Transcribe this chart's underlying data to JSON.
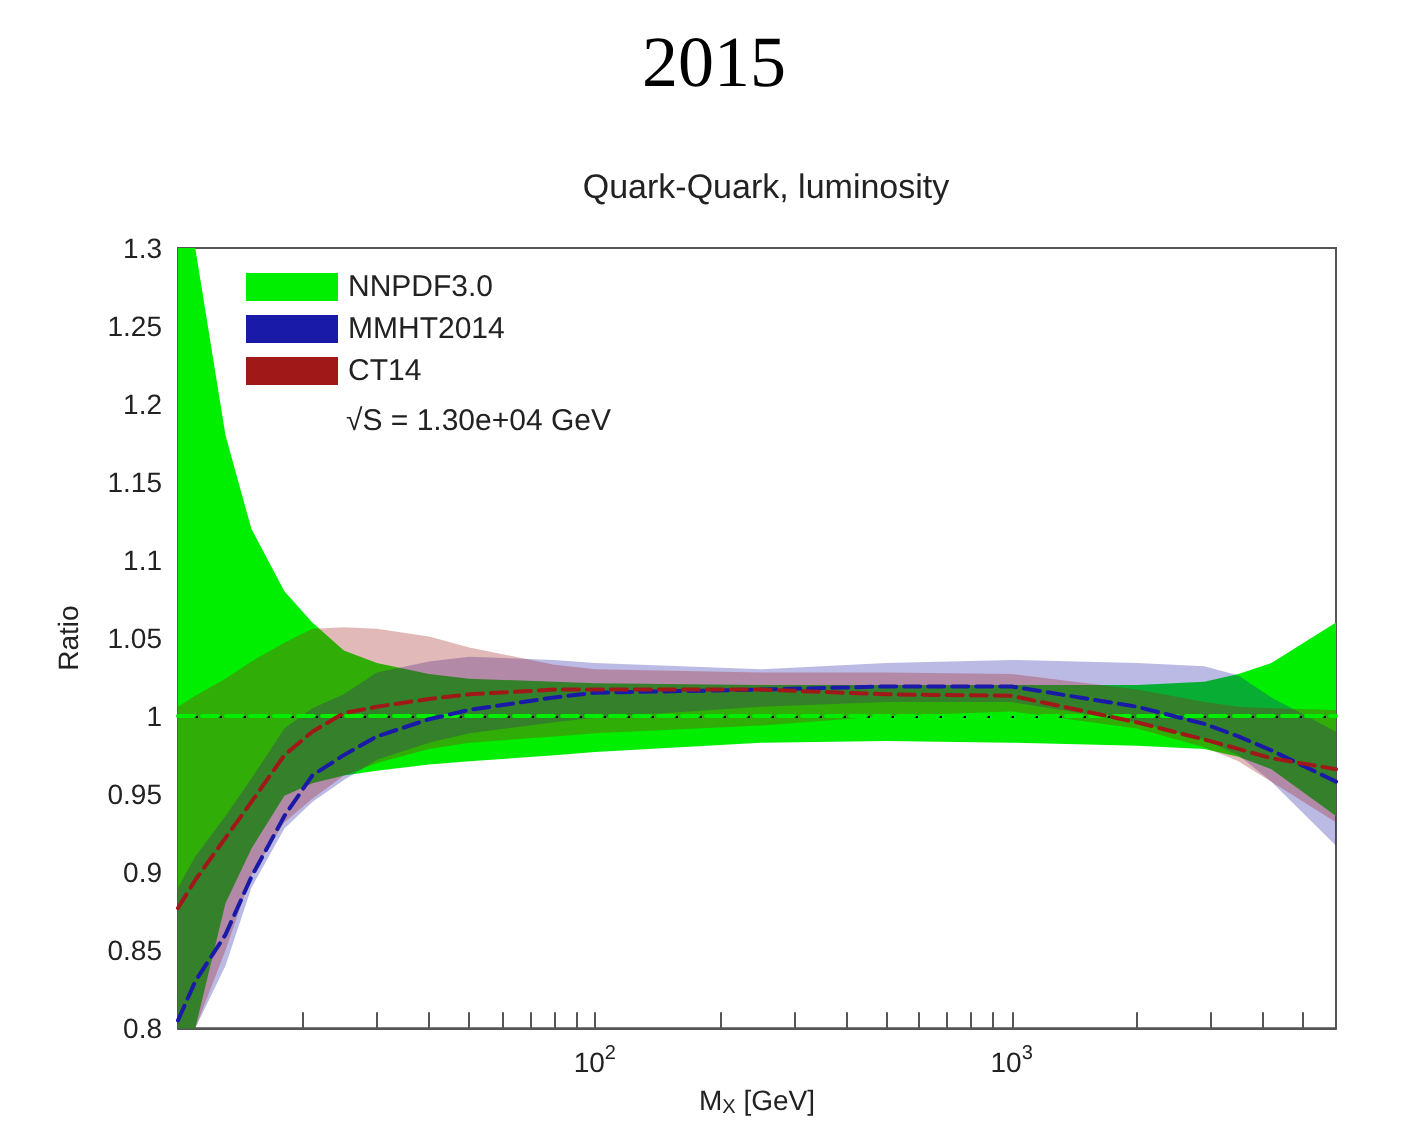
{
  "chart_data": {
    "type": "line",
    "title": "2015",
    "subtitle": "Quark-Quark, luminosity",
    "xlabel": "M$_{X}$ [GeV]",
    "ylabel": "Ratio",
    "annotations": [
      "√S = 1.30e+04 GeV"
    ],
    "ref_lines": [
      {
        "axis": "y",
        "value": 1,
        "color": "#000000",
        "line_style": "dashed"
      }
    ],
    "log": "x",
    "grid": false,
    "legend": "top left",
    "marker": "none",
    "line_style": "dashed",
    "xlim": [
      10,
      6000
    ],
    "ylim": [
      0.8,
      1.3
    ],
    "xticks": [
      {
        "value": 20,
        "label": null
      },
      {
        "value": 30,
        "label": null
      },
      {
        "value": 40,
        "label": null
      },
      {
        "value": 50,
        "label": null
      },
      {
        "value": 60,
        "label": null
      },
      {
        "value": 70,
        "label": null
      },
      {
        "value": 80,
        "label": null
      },
      {
        "value": 90,
        "label": null
      },
      {
        "value": 100,
        "label": "10$^{2}$"
      },
      {
        "value": 200,
        "label": null
      },
      {
        "value": 300,
        "label": null
      },
      {
        "value": 400,
        "label": null
      },
      {
        "value": 500,
        "label": null
      },
      {
        "value": 600,
        "label": null
      },
      {
        "value": 700,
        "label": null
      },
      {
        "value": 800,
        "label": null
      },
      {
        "value": 900,
        "label": null
      },
      {
        "value": 1000,
        "label": "10$^{3}$"
      },
      {
        "value": 2000,
        "label": null
      },
      {
        "value": 3000,
        "label": null
      },
      {
        "value": 4000,
        "label": null
      },
      {
        "value": 5000,
        "label": null
      }
    ],
    "yticks": [
      0.8,
      0.85,
      0.9,
      0.95,
      1,
      1.05,
      1.1,
      1.15,
      1.2,
      1.25,
      1.3
    ],
    "x": [
      10,
      11,
      13,
      15,
      18,
      21,
      25,
      30,
      40,
      50,
      80,
      100,
      250,
      500,
      1000,
      2000,
      2900,
      3500,
      4200,
      6000
    ],
    "series": [
      {
        "name": "NNPDF3.0",
        "color": "#00ee00",
        "values": [
          1,
          1,
          1,
          1,
          1,
          1,
          1,
          1,
          1,
          1,
          1,
          1,
          1,
          1,
          1,
          1,
          1,
          1,
          1,
          1
        ],
        "upper": [
          1.3,
          1.3,
          1.18,
          1.12,
          1.08,
          1.06,
          1.042,
          1.034,
          1.027,
          1.024,
          1.022,
          1.021,
          1.02,
          1.02,
          1.02,
          1.02,
          1.022,
          1.027,
          1.034,
          1.06
        ],
        "lower": [
          0.8,
          0.8,
          0.88,
          0.915,
          0.949,
          0.957,
          0.962,
          0.965,
          0.969,
          0.971,
          0.975,
          0.977,
          0.983,
          0.984,
          0.983,
          0.981,
          0.979,
          0.974,
          0.966,
          0.936
        ]
      },
      {
        "name": "MMHT2014",
        "color": "#1a1aa8",
        "values": [
          0.805,
          0.83,
          0.86,
          0.897,
          0.936,
          0.962,
          0.975,
          0.987,
          0.998,
          1.004,
          1.012,
          1.015,
          1.017,
          1.019,
          1.019,
          1.006,
          0.995,
          0.987,
          0.978,
          0.958
        ],
        "upper": [
          0.89,
          0.91,
          0.936,
          0.96,
          0.992,
          1.005,
          1.014,
          1.028,
          1.035,
          1.038,
          1.036,
          1.034,
          1.03,
          1.034,
          1.036,
          1.034,
          1.032,
          1.026,
          1.012,
          0.99
        ],
        "lower": [
          0.8,
          0.8,
          0.84,
          0.89,
          0.928,
          0.945,
          0.959,
          0.972,
          0.983,
          0.989,
          0.996,
          0.999,
          1.006,
          1.009,
          1.009,
          0.996,
          0.985,
          0.975,
          0.958,
          0.917
        ]
      },
      {
        "name": "CT14",
        "color": "#a01818",
        "values": [
          0.877,
          0.895,
          0.922,
          0.945,
          0.975,
          0.99,
          1.002,
          1.006,
          1.011,
          1.014,
          1.017,
          1.017,
          1.017,
          1.014,
          1.013,
          0.996,
          0.985,
          0.979,
          0.973,
          0.966
        ],
        "upper": [
          1.006,
          1.013,
          1.024,
          1.035,
          1.047,
          1.056,
          1.057,
          1.056,
          1.051,
          1.044,
          1.033,
          1.03,
          1.028,
          1.028,
          1.027,
          1.017,
          1.009,
          1.006,
          1.005,
          1.004
        ],
        "lower": [
          0.8,
          0.8,
          0.85,
          0.898,
          0.932,
          0.947,
          0.962,
          0.97,
          0.979,
          0.983,
          0.987,
          0.989,
          0.994,
          1.0,
          1.003,
          0.992,
          0.98,
          0.971,
          0.958,
          0.932
        ]
      }
    ]
  }
}
